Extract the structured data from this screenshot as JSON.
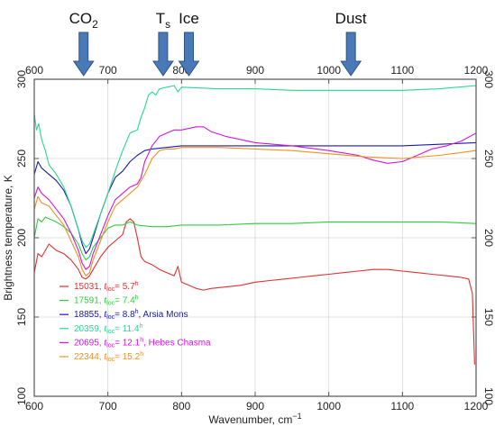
{
  "chart_data": {
    "type": "line",
    "title": "",
    "xlabel": "Wavenumber, cm",
    "xlabel_sup": "−1",
    "ylabel": "Brightness temperature, K",
    "xlim": [
      600,
      1200
    ],
    "ylim": [
      100,
      300
    ],
    "x_ticks": [
      600,
      700,
      800,
      900,
      1000,
      1100,
      1200
    ],
    "y_ticks": [
      100,
      150,
      200,
      250,
      300
    ],
    "grid": true,
    "legend_position": "bottom-left",
    "annotations": [
      {
        "text": "CO",
        "sub": "2",
        "x": 667
      },
      {
        "text": "T",
        "sub": "s",
        "x": 775
      },
      {
        "text": "Ice",
        "x": 810
      },
      {
        "text": "Dust",
        "x": 1030
      }
    ],
    "series": [
      {
        "id": "15031",
        "color": "#e03030",
        "time": "5.7",
        "extra": "",
        "points": [
          [
            600,
            178
          ],
          [
            605,
            190
          ],
          [
            610,
            188
          ],
          [
            615,
            192
          ],
          [
            620,
            196
          ],
          [
            625,
            194
          ],
          [
            630,
            192
          ],
          [
            640,
            190
          ],
          [
            650,
            186
          ],
          [
            660,
            180
          ],
          [
            665,
            175
          ],
          [
            670,
            174
          ],
          [
            675,
            176
          ],
          [
            680,
            180
          ],
          [
            690,
            188
          ],
          [
            700,
            194
          ],
          [
            710,
            198
          ],
          [
            715,
            200
          ],
          [
            720,
            202
          ],
          [
            725,
            210
          ],
          [
            730,
            212
          ],
          [
            735,
            210
          ],
          [
            740,
            200
          ],
          [
            745,
            188
          ],
          [
            750,
            185
          ],
          [
            760,
            183
          ],
          [
            770,
            180
          ],
          [
            780,
            178
          ],
          [
            790,
            176
          ],
          [
            795,
            182
          ],
          [
            800,
            172
          ],
          [
            810,
            170
          ],
          [
            820,
            168
          ],
          [
            830,
            167
          ],
          [
            840,
            168
          ],
          [
            860,
            169
          ],
          [
            880,
            170
          ],
          [
            900,
            172
          ],
          [
            920,
            173
          ],
          [
            940,
            174
          ],
          [
            960,
            175
          ],
          [
            980,
            176
          ],
          [
            1000,
            177
          ],
          [
            1020,
            178
          ],
          [
            1040,
            179
          ],
          [
            1060,
            180
          ],
          [
            1080,
            180
          ],
          [
            1100,
            179
          ],
          [
            1120,
            178
          ],
          [
            1140,
            177
          ],
          [
            1160,
            176
          ],
          [
            1180,
            175
          ],
          [
            1190,
            174
          ],
          [
            1195,
            165
          ],
          [
            1198,
            120
          ]
        ]
      },
      {
        "id": "17591",
        "color": "#2ecc40",
        "time": "7.4",
        "extra": "",
        "points": [
          [
            600,
            200
          ],
          [
            605,
            212
          ],
          [
            610,
            210
          ],
          [
            615,
            213
          ],
          [
            620,
            212
          ],
          [
            630,
            210
          ],
          [
            640,
            207
          ],
          [
            650,
            203
          ],
          [
            660,
            196
          ],
          [
            665,
            190
          ],
          [
            670,
            186
          ],
          [
            675,
            188
          ],
          [
            680,
            194
          ],
          [
            690,
            200
          ],
          [
            700,
            206
          ],
          [
            710,
            208
          ],
          [
            720,
            208
          ],
          [
            730,
            210
          ],
          [
            740,
            208
          ],
          [
            760,
            207
          ],
          [
            780,
            207
          ],
          [
            800,
            208
          ],
          [
            850,
            208
          ],
          [
            900,
            209
          ],
          [
            950,
            209
          ],
          [
            1000,
            210
          ],
          [
            1050,
            210
          ],
          [
            1100,
            210
          ],
          [
            1150,
            210
          ],
          [
            1200,
            209
          ]
        ]
      },
      {
        "id": "18855",
        "color": "#1a1aa6",
        "time": "8.8",
        "extra": ", Arsia Mons",
        "points": [
          [
            600,
            240
          ],
          [
            605,
            248
          ],
          [
            610,
            244
          ],
          [
            620,
            240
          ],
          [
            630,
            236
          ],
          [
            640,
            230
          ],
          [
            650,
            220
          ],
          [
            660,
            205
          ],
          [
            665,
            196
          ],
          [
            670,
            190
          ],
          [
            675,
            193
          ],
          [
            680,
            200
          ],
          [
            690,
            215
          ],
          [
            700,
            228
          ],
          [
            710,
            238
          ],
          [
            720,
            242
          ],
          [
            730,
            248
          ],
          [
            740,
            252
          ],
          [
            750,
            255
          ],
          [
            760,
            256
          ],
          [
            780,
            257
          ],
          [
            800,
            258
          ],
          [
            850,
            258
          ],
          [
            900,
            258
          ],
          [
            950,
            258
          ],
          [
            1000,
            258
          ],
          [
            1050,
            258
          ],
          [
            1100,
            258
          ],
          [
            1150,
            259
          ],
          [
            1200,
            260
          ]
        ]
      },
      {
        "id": "20359",
        "color": "#28d890",
        "time": "11.4",
        "extra": "",
        "points": [
          [
            600,
            278
          ],
          [
            603,
            268
          ],
          [
            606,
            272
          ],
          [
            610,
            262
          ],
          [
            615,
            255
          ],
          [
            620,
            246
          ],
          [
            630,
            240
          ],
          [
            640,
            232
          ],
          [
            650,
            220
          ],
          [
            660,
            205
          ],
          [
            665,
            198
          ],
          [
            670,
            194
          ],
          [
            675,
            196
          ],
          [
            680,
            202
          ],
          [
            690,
            215
          ],
          [
            700,
            228
          ],
          [
            710,
            242
          ],
          [
            720,
            255
          ],
          [
            730,
            266
          ],
          [
            740,
            268
          ],
          [
            745,
            276
          ],
          [
            750,
            282
          ],
          [
            755,
            290
          ],
          [
            760,
            292
          ],
          [
            765,
            290
          ],
          [
            770,
            294
          ],
          [
            780,
            295
          ],
          [
            790,
            296
          ],
          [
            795,
            292
          ],
          [
            800,
            295
          ],
          [
            850,
            294
          ],
          [
            900,
            294
          ],
          [
            950,
            293
          ],
          [
            1000,
            293
          ],
          [
            1050,
            293
          ],
          [
            1100,
            293
          ],
          [
            1150,
            294
          ],
          [
            1200,
            296
          ]
        ]
      },
      {
        "id": "20695",
        "color": "#d018d8",
        "time": "12.1",
        "extra": ", Hebes Chasma",
        "points": [
          [
            600,
            225
          ],
          [
            605,
            232
          ],
          [
            610,
            228
          ],
          [
            620,
            224
          ],
          [
            630,
            218
          ],
          [
            640,
            212
          ],
          [
            650,
            203
          ],
          [
            660,
            192
          ],
          [
            665,
            184
          ],
          [
            670,
            180
          ],
          [
            675,
            182
          ],
          [
            680,
            190
          ],
          [
            690,
            202
          ],
          [
            700,
            214
          ],
          [
            710,
            224
          ],
          [
            720,
            228
          ],
          [
            730,
            232
          ],
          [
            740,
            234
          ],
          [
            745,
            238
          ],
          [
            750,
            248
          ],
          [
            760,
            258
          ],
          [
            770,
            264
          ],
          [
            780,
            266
          ],
          [
            790,
            268
          ],
          [
            800,
            268
          ],
          [
            820,
            270
          ],
          [
            830,
            270
          ],
          [
            840,
            267
          ],
          [
            860,
            264
          ],
          [
            880,
            262
          ],
          [
            900,
            260
          ],
          [
            950,
            258
          ],
          [
            1000,
            255
          ],
          [
            1040,
            252
          ],
          [
            1060,
            249
          ],
          [
            1080,
            247
          ],
          [
            1100,
            248
          ],
          [
            1120,
            252
          ],
          [
            1140,
            256
          ],
          [
            1160,
            258
          ],
          [
            1180,
            261
          ],
          [
            1200,
            266
          ]
        ]
      },
      {
        "id": "22344",
        "color": "#f0901e",
        "time": "15.2",
        "extra": "",
        "points": [
          [
            600,
            218
          ],
          [
            605,
            226
          ],
          [
            610,
            222
          ],
          [
            620,
            220
          ],
          [
            630,
            214
          ],
          [
            640,
            208
          ],
          [
            650,
            198
          ],
          [
            660,
            188
          ],
          [
            665,
            180
          ],
          [
            670,
            176
          ],
          [
            675,
            178
          ],
          [
            680,
            186
          ],
          [
            690,
            198
          ],
          [
            700,
            210
          ],
          [
            710,
            220
          ],
          [
            720,
            224
          ],
          [
            730,
            228
          ],
          [
            740,
            232
          ],
          [
            750,
            240
          ],
          [
            760,
            250
          ],
          [
            770,
            255
          ],
          [
            780,
            256
          ],
          [
            790,
            256
          ],
          [
            800,
            257
          ],
          [
            850,
            257
          ],
          [
            900,
            256
          ],
          [
            950,
            255
          ],
          [
            1000,
            253
          ],
          [
            1050,
            251
          ],
          [
            1100,
            250
          ],
          [
            1150,
            252
          ],
          [
            1200,
            255
          ]
        ]
      }
    ]
  }
}
